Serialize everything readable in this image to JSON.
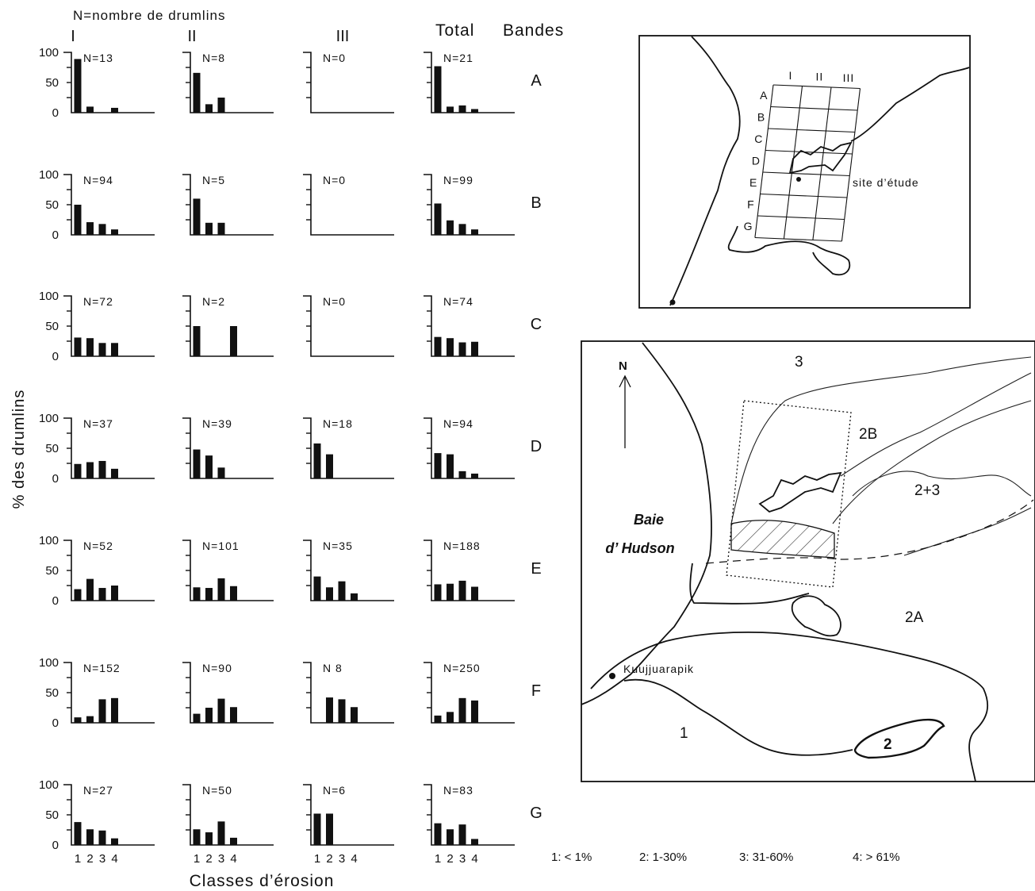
{
  "header": {
    "n_note": "N=nombre de drumlins",
    "total_label": "Total",
    "bands_label": "Bandes"
  },
  "axes": {
    "ylabel": "% des drumlins",
    "xlabel": "Classes d’érosion",
    "y_ticks": [
      "100",
      "50",
      "0"
    ],
    "x_ticks": [
      "1",
      "2",
      "3",
      "4"
    ]
  },
  "chart_data": {
    "type": "bar",
    "categories": [
      "1",
      "2",
      "3",
      "4"
    ],
    "ylim": [
      0,
      100
    ],
    "ylabel": "% des drumlins",
    "xlabel": "Classes d’érosion",
    "columns": [
      "I",
      "II",
      "III",
      "Total"
    ],
    "bands": [
      {
        "band": "A",
        "panels": [
          {
            "n": "N=13",
            "values": [
              89,
              10,
              0,
              8
            ]
          },
          {
            "n": "N=8",
            "values": [
              66,
              14,
              25,
              0
            ]
          },
          {
            "n": "N=0",
            "values": [
              0,
              0,
              0,
              0
            ]
          },
          {
            "n": "N=21",
            "values": [
              77,
              10,
              12,
              6
            ]
          }
        ]
      },
      {
        "band": "B",
        "panels": [
          {
            "n": "N=94",
            "values": [
              50,
              21,
              18,
              9
            ]
          },
          {
            "n": "N=5",
            "values": [
              60,
              20,
              20,
              0
            ]
          },
          {
            "n": "N=0",
            "values": [
              0,
              0,
              0,
              0
            ]
          },
          {
            "n": "N=99",
            "values": [
              52,
              24,
              18,
              9
            ]
          }
        ]
      },
      {
        "band": "C",
        "panels": [
          {
            "n": "N=72",
            "values": [
              31,
              30,
              22,
              22
            ]
          },
          {
            "n": "N=2",
            "values": [
              50,
              0,
              0,
              50
            ]
          },
          {
            "n": "N=0",
            "values": [
              0,
              0,
              0,
              0
            ]
          },
          {
            "n": "N=74",
            "values": [
              32,
              30,
              23,
              24
            ]
          }
        ]
      },
      {
        "band": "D",
        "panels": [
          {
            "n": "N=37",
            "values": [
              24,
              27,
              29,
              16
            ]
          },
          {
            "n": "N=39",
            "values": [
              48,
              38,
              18,
              0
            ]
          },
          {
            "n": "N=18",
            "values": [
              58,
              40,
              0,
              0
            ]
          },
          {
            "n": "N=94",
            "values": [
              42,
              40,
              12,
              8
            ]
          }
        ]
      },
      {
        "band": "E",
        "panels": [
          {
            "n": "N=52",
            "values": [
              19,
              36,
              21,
              25
            ]
          },
          {
            "n": "N=101",
            "values": [
              22,
              21,
              37,
              24
            ]
          },
          {
            "n": "N=35",
            "values": [
              40,
              22,
              32,
              12
            ]
          },
          {
            "n": "N=188",
            "values": [
              27,
              28,
              33,
              23
            ]
          }
        ]
      },
      {
        "band": "F",
        "panels": [
          {
            "n": "N=152",
            "values": [
              9,
              11,
              39,
              41
            ]
          },
          {
            "n": "N=90",
            "values": [
              15,
              25,
              40,
              26
            ]
          },
          {
            "n": "N 8",
            "values": [
              0,
              42,
              39,
              26
            ]
          },
          {
            "n": "N=250",
            "values": [
              12,
              18,
              41,
              37
            ]
          }
        ]
      },
      {
        "band": "G",
        "panels": [
          {
            "n": "N=27",
            "values": [
              38,
              26,
              24,
              11
            ]
          },
          {
            "n": "N=50",
            "values": [
              26,
              21,
              39,
              12
            ]
          },
          {
            "n": "N=6",
            "values": [
              52,
              52,
              0,
              0
            ]
          },
          {
            "n": "N=83",
            "values": [
              36,
              26,
              34,
              10
            ]
          }
        ]
      }
    ]
  },
  "inset_map": {
    "grid_cols": [
      "I",
      "II",
      "III"
    ],
    "grid_rows": [
      "A",
      "B",
      "C",
      "D",
      "E",
      "F",
      "G"
    ],
    "site_label": "site d’étude"
  },
  "main_map": {
    "north": "N",
    "bay_line1": "Baie",
    "bay_line2": "d’ Hudson",
    "town": "Kuujjuarapik",
    "zones": [
      "3",
      "2B",
      "2+3",
      "2A",
      "1",
      "2"
    ]
  },
  "legend": {
    "items": [
      "1: < 1%",
      "2: 1-30%",
      "3: 31-60%",
      "4: > 61%"
    ]
  },
  "colors": {
    "ink": "#111111",
    "background": "#ffffff",
    "hatch": "#333333"
  }
}
